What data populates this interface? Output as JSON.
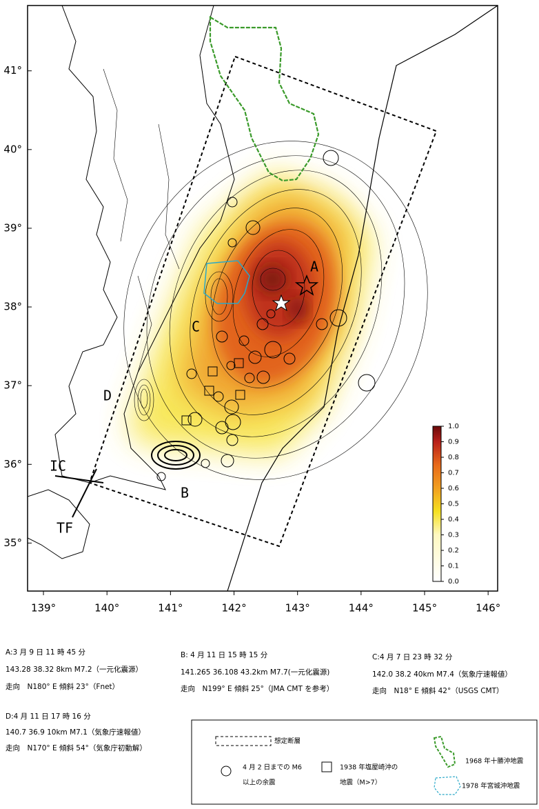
{
  "map": {
    "xlim": [
      138.75,
      146.15
    ],
    "ylim": [
      34.39,
      41.83
    ],
    "xticks": [
      {
        "value": 139,
        "label": "139°"
      },
      {
        "value": 140,
        "label": "140°"
      },
      {
        "value": 141,
        "label": "141°"
      },
      {
        "value": 142,
        "label": "142°"
      },
      {
        "value": 143,
        "label": "143°"
      },
      {
        "value": 144,
        "label": "144°"
      },
      {
        "value": 145,
        "label": "145°"
      },
      {
        "value": 146,
        "label": "146°"
      }
    ],
    "yticks": [
      {
        "value": 35,
        "label": "35°"
      },
      {
        "value": 36,
        "label": "36°"
      },
      {
        "value": 37,
        "label": "37°"
      },
      {
        "value": 38,
        "label": "38°"
      },
      {
        "value": 39,
        "label": "39°"
      },
      {
        "value": 40,
        "label": "40°"
      },
      {
        "value": 41,
        "label": "41°"
      }
    ],
    "colorbar": {
      "lim": [
        0,
        1
      ],
      "ticks": [
        {
          "value": 0,
          "label": "0.0"
        },
        0.1,
        0.2,
        0.3,
        0.4,
        0.5,
        0.6,
        0.7,
        0.8,
        0.9,
        {
          "value": 1,
          "label": "1.0"
        }
      ]
    },
    "labels": [
      "A",
      "B",
      "C",
      "D",
      "IC",
      "TF"
    ]
  },
  "events": [
    {
      "lines": [
        "A:3 月 9 日 11 時 45 分",
        "143.28 38.32 8km M7.2（一元化震源）",
        "走向　N180° E 傾斜 23°（Fnet）"
      ]
    },
    {
      "lines": [
        "B: 4 月 11 日 15 時 15 分",
        "141.265 36.108 43.2km M7.7(一元化震源)",
        "走向　N199° E 傾斜 25°（JMA CMT を参考）"
      ]
    },
    {
      "lines": [
        "C:4 月 7 日 23 時 32 分",
        "142.0 38.2 40km M7.4（気象庁速報値）",
        "走向　N18° E 傾斜 42°（USGS CMT）"
      ]
    },
    {
      "lines": [
        "D:4 月 11 日 17 時 16 分",
        "140.7 36.9 10km M7.1（気象庁速報値）",
        "走向　N170° E 傾斜 54°（気象庁初動解）"
      ]
    }
  ],
  "legend": {
    "fault": "想定断層",
    "aftershock": [
      "4 月 2 日までの M6",
      "以上の余震"
    ],
    "shioyazaki": [
      "1938 年塩屋崎沖の",
      "地震（M>7）"
    ],
    "tokachi": "1968 年十勝沖地震",
    "miyagi": "1978 年宮城沖地震"
  }
}
